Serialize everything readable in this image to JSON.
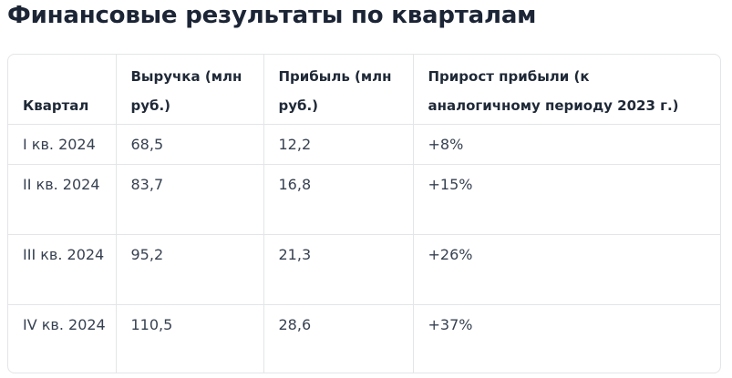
{
  "title": "Финансовые результаты по кварталам",
  "table": {
    "headers": [
      "Квартал",
      "Выручка (млн руб.)",
      "Прибыль (млн руб.)",
      "Прирост прибыли (к аналогичному периоду 2023 г.)"
    ],
    "rows": [
      [
        "I кв. 2024",
        "68,5",
        "12,2",
        "+8%"
      ],
      [
        "II кв. 2024",
        "83,7",
        "16,8",
        "+15%"
      ],
      [
        "III кв. 2024",
        "95,2",
        "21,3",
        "+26%"
      ],
      [
        "IV кв. 2024",
        "110,5",
        "28,6",
        "+37%"
      ]
    ]
  }
}
